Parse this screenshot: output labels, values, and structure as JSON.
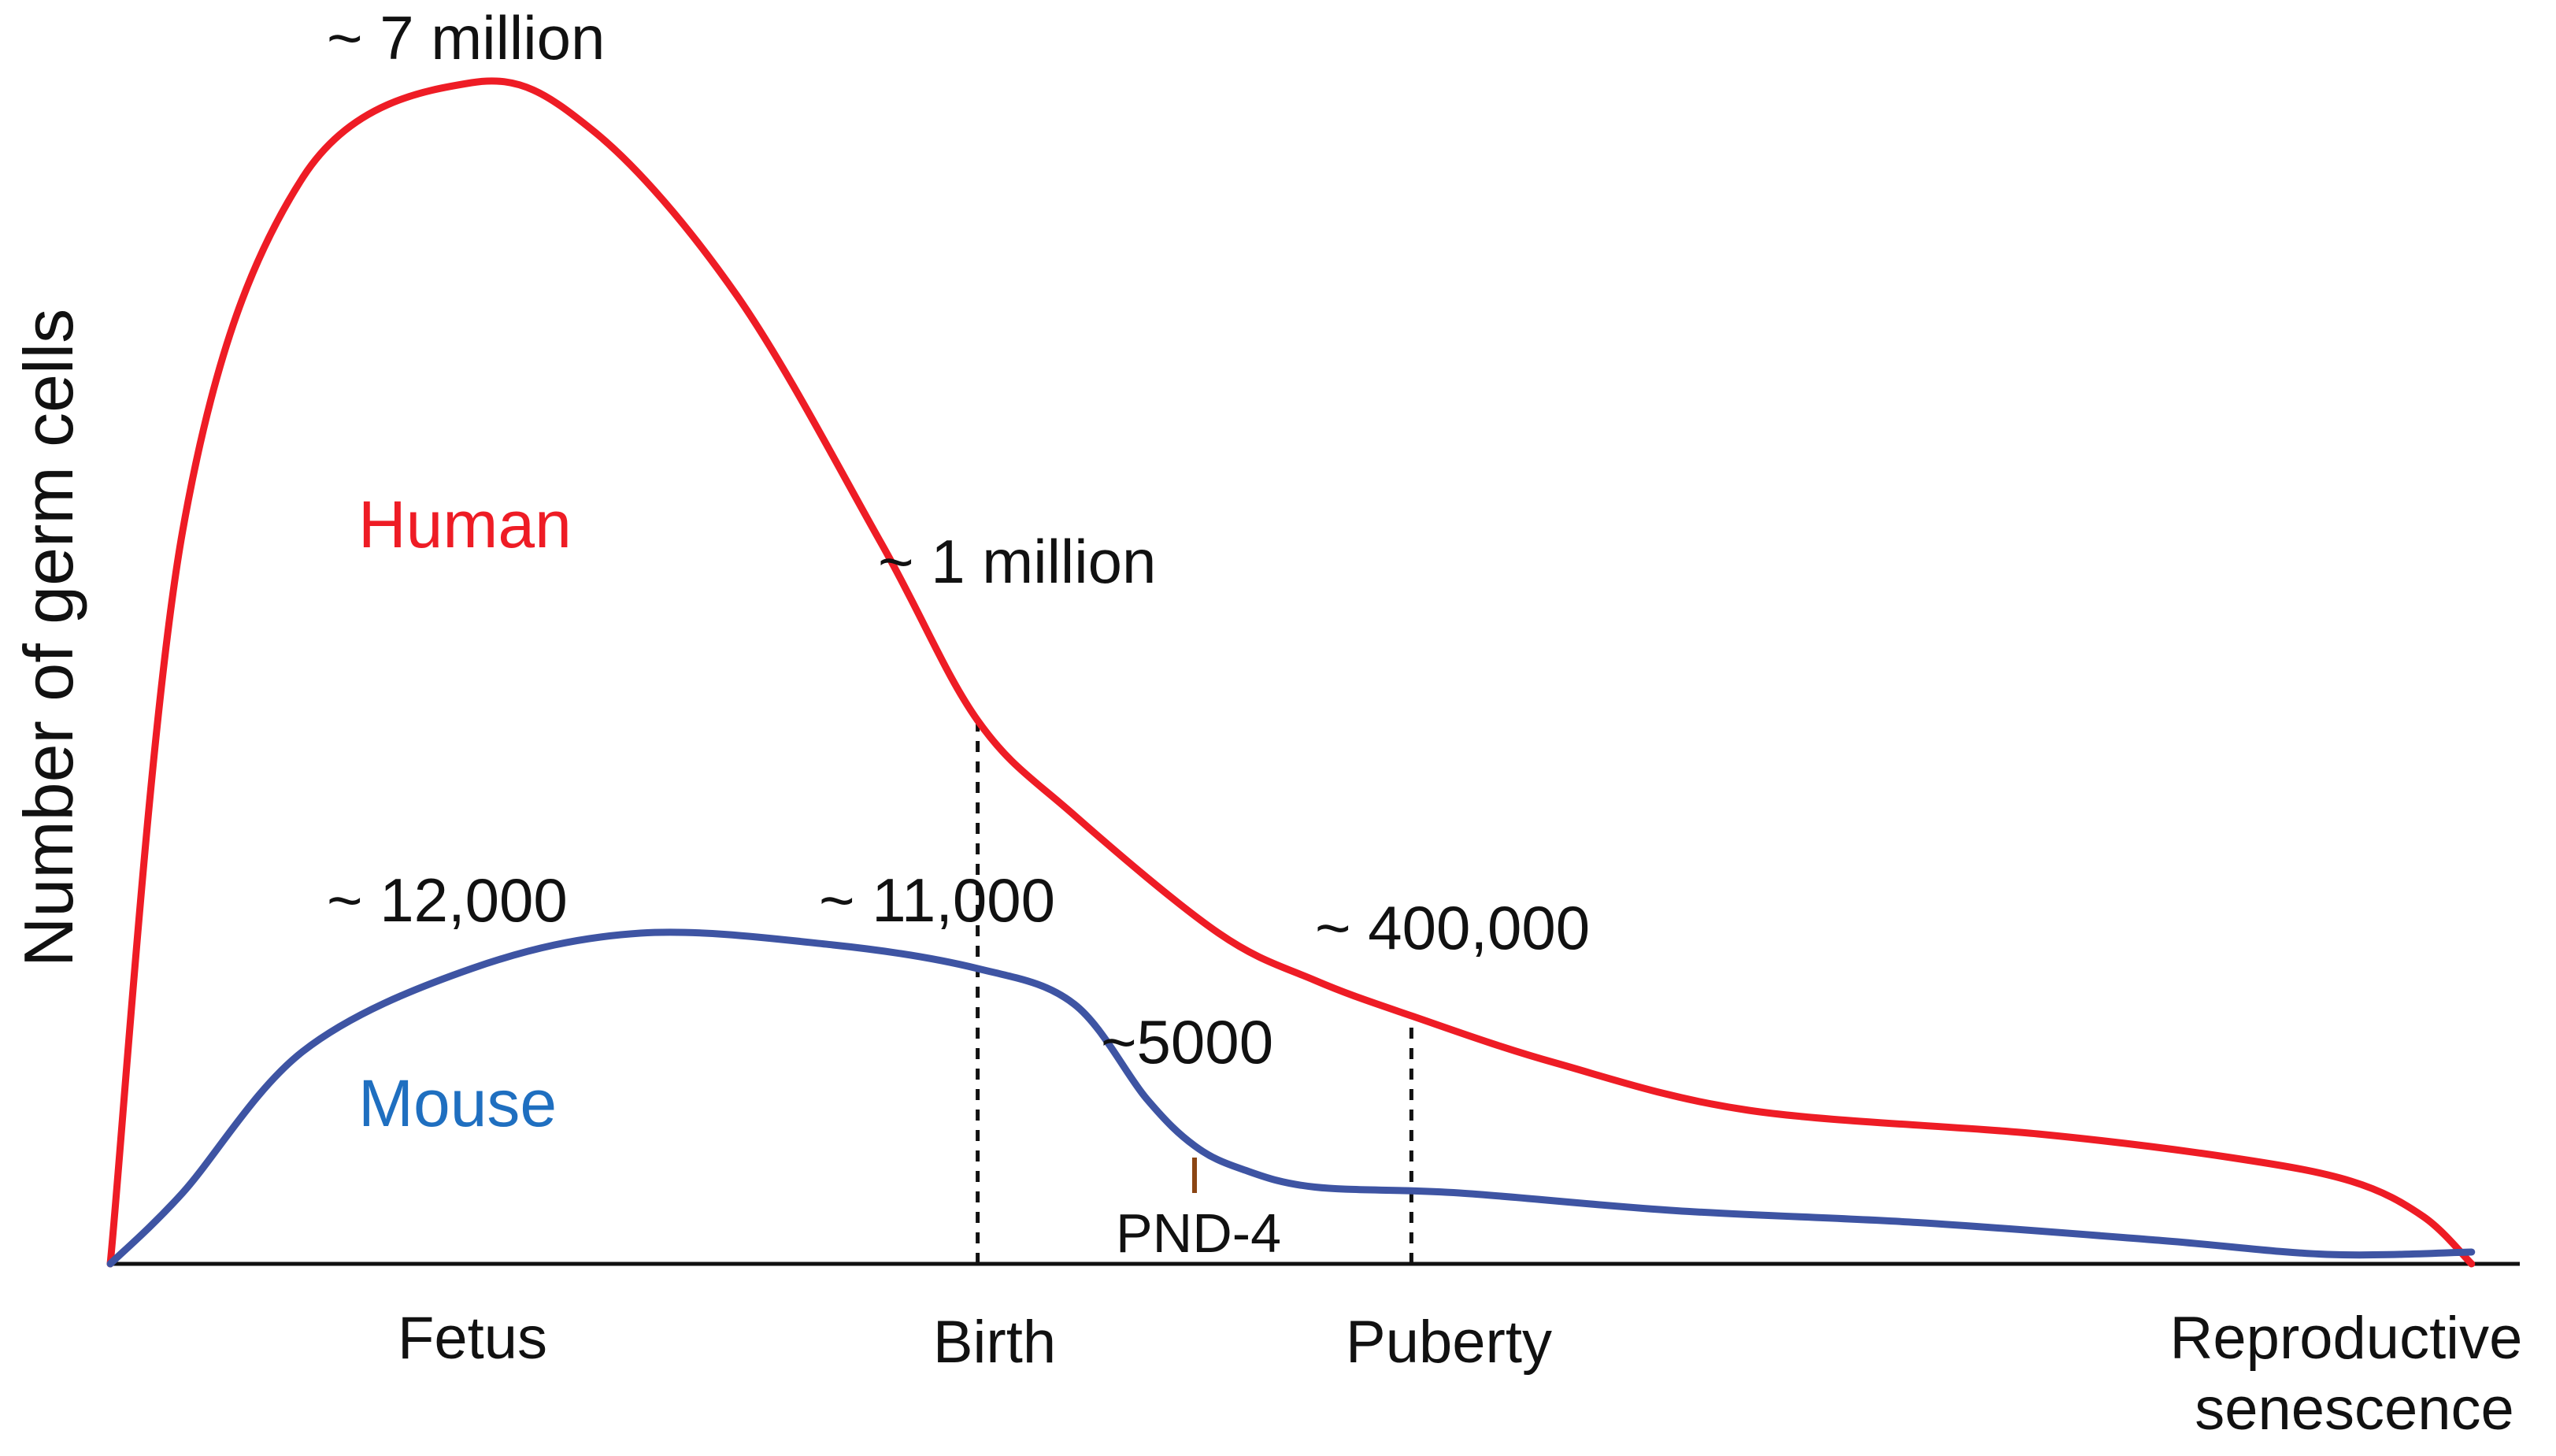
{
  "chart_data": {
    "type": "line",
    "title": "",
    "xlabel": "",
    "ylabel": "Number of germ cells",
    "x_scale": "schematic developmental timeline (arbitrary units)",
    "y_scale": "schematic relative germ cell number (not to scale)",
    "xlim": [
      0,
      100
    ],
    "ylim": [
      0,
      100
    ],
    "grid": false,
    "stage_ticks": [
      {
        "label": "Fetus",
        "x": 15
      },
      {
        "label": "Birth",
        "x": 36
      },
      {
        "label": "Puberty",
        "x": 55
      },
      {
        "label": "Reproductive senescence",
        "x": 94
      }
    ],
    "reference_lines": [
      {
        "name": "birth",
        "x": 36,
        "y_top": 46
      },
      {
        "name": "puberty",
        "x": 54,
        "y_top": 21
      }
    ],
    "tick_marks": [
      {
        "name": "PND-4",
        "label": "PND-4",
        "x": 45,
        "y_bottom": 6,
        "y_top": 9,
        "color": "#8B4513"
      }
    ],
    "series": [
      {
        "name": "Human",
        "color": "#ee1c25",
        "points": [
          [
            0,
            0
          ],
          [
            3,
            62
          ],
          [
            8,
            92
          ],
          [
            15,
            100
          ],
          [
            20,
            96
          ],
          [
            26,
            82
          ],
          [
            32,
            61
          ],
          [
            36,
            46
          ],
          [
            40,
            38
          ],
          [
            46,
            28
          ],
          [
            50,
            24
          ],
          [
            54,
            21
          ],
          [
            60,
            17
          ],
          [
            68,
            13
          ],
          [
            80,
            11
          ],
          [
            88,
            9
          ],
          [
            93,
            7
          ],
          [
            96,
            4
          ],
          [
            98,
            0
          ]
        ]
      },
      {
        "name": "Mouse",
        "color": "#3e54a3",
        "points": [
          [
            0,
            0
          ],
          [
            3,
            6
          ],
          [
            8,
            18
          ],
          [
            15,
            25
          ],
          [
            22,
            28
          ],
          [
            30,
            27
          ],
          [
            36,
            25
          ],
          [
            40,
            22
          ],
          [
            43,
            14
          ],
          [
            45,
            10
          ],
          [
            47,
            8
          ],
          [
            50,
            6.5
          ],
          [
            56,
            6
          ],
          [
            65,
            4.5
          ],
          [
            75,
            3.5
          ],
          [
            85,
            2
          ],
          [
            92,
            0.8
          ],
          [
            98,
            1
          ]
        ]
      }
    ],
    "annotations": [
      {
        "name": "human-peak",
        "text": "~ 7 million",
        "x": 15,
        "y": 100
      },
      {
        "name": "human-midfetal",
        "text": "~ 1 million",
        "x": 37,
        "y": 58
      },
      {
        "name": "human-puberty",
        "text": "~ 400,000",
        "x": 58,
        "y": 28
      },
      {
        "name": "mouse-peak",
        "text": "~ 12,000",
        "x": 15,
        "y": 28
      },
      {
        "name": "mouse-birth",
        "text": "~ 11,000",
        "x": 36,
        "y": 28
      },
      {
        "name": "mouse-5000",
        "text": "~5000",
        "x": 46,
        "y": 18
      }
    ],
    "legend": {
      "placement": "inline-left",
      "entries": [
        {
          "name": "Human",
          "color": "#ee1c25"
        },
        {
          "name": "Mouse",
          "color": "#1f6fc0"
        }
      ]
    }
  }
}
